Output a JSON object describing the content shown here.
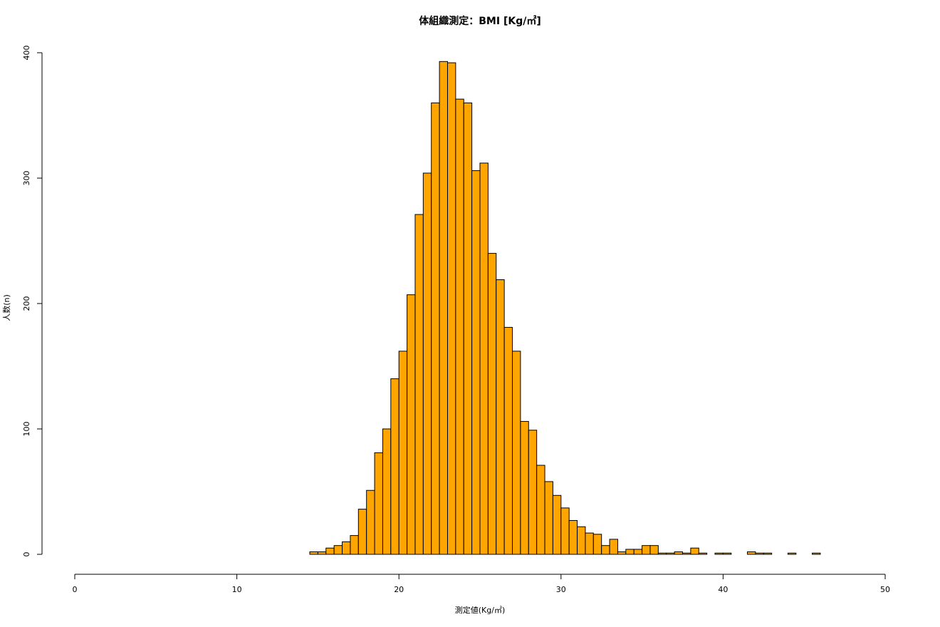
{
  "chart_data": {
    "type": "histogram",
    "title": "体組織測定：BMI [Kg/㎡]",
    "xlabel": "測定値(Kg/㎡)",
    "ylabel": "人数(n)",
    "bins": [
      14.5,
      15,
      15.5,
      16,
      16.5,
      17,
      17.5,
      18,
      18.5,
      19,
      19.5,
      20,
      20.5,
      21,
      21.5,
      22,
      22.5,
      23,
      23.5,
      24,
      24.5,
      25,
      25.5,
      26,
      26.5,
      27,
      27.5,
      28,
      28.5,
      29,
      29.5,
      30,
      30.5,
      31,
      31.5,
      32,
      32.5,
      33,
      33.5,
      34,
      34.5,
      35,
      35.5,
      36,
      36.5,
      37,
      37.5,
      38,
      38.5,
      39,
      39.5,
      40,
      40.5,
      41,
      41.5,
      42,
      42.5,
      43,
      43.5,
      44,
      44.5,
      45,
      45.5,
      46
    ],
    "values": [
      2,
      2,
      5,
      7,
      10,
      15,
      36,
      51,
      81,
      100,
      140,
      162,
      207,
      271,
      304,
      360,
      393,
      392,
      363,
      360,
      306,
      312,
      240,
      219,
      181,
      162,
      106,
      99,
      71,
      58,
      47,
      37,
      27,
      22,
      17,
      16,
      7,
      12,
      2,
      4,
      4,
      7,
      7,
      1,
      1,
      2,
      1,
      5,
      1,
      0,
      1,
      1,
      0,
      0,
      2,
      1,
      1,
      0,
      0,
      1,
      0,
      0,
      1
    ],
    "color": "#ffa500",
    "xlim": [
      0,
      50
    ],
    "xticks": [
      0,
      10,
      20,
      30,
      40,
      50
    ],
    "ylim": [
      0,
      400
    ],
    "yticks": [
      0,
      100,
      200,
      300,
      400
    ]
  }
}
